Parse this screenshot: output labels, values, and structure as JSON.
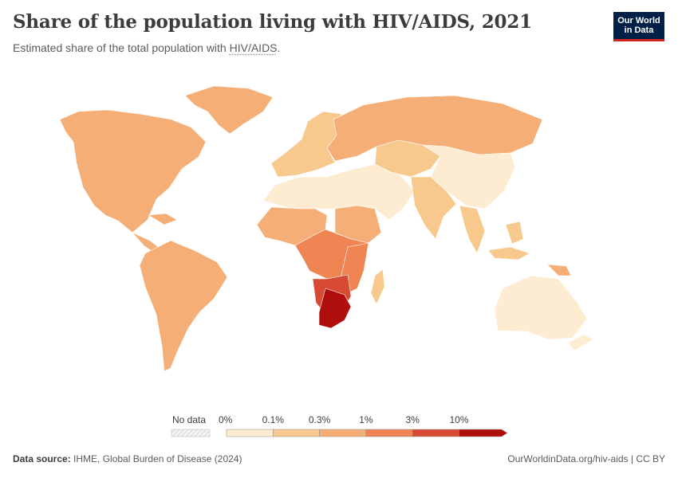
{
  "header": {
    "title": "Share of the population living with HIV/AIDS, 2021",
    "subtitle_prefix": "Estimated share of the total population with ",
    "subtitle_term": "HIV/AIDS",
    "subtitle_suffix": "."
  },
  "logo": {
    "line1": "Our World",
    "line2": "in Data",
    "bg_color": "#002147",
    "accent_color": "#ce261e"
  },
  "legend": {
    "no_data_label": "No data",
    "bins": [
      {
        "label": "0%",
        "color": "#fdecd2"
      },
      {
        "label": "0.1%",
        "color": "#f8c98c"
      },
      {
        "label": "0.3%",
        "color": "#f4ae76"
      },
      {
        "label": "1%",
        "color": "#ee8552"
      },
      {
        "label": "3%",
        "color": "#d84a33"
      },
      {
        "label": "10%",
        "color": "#b00d0d"
      }
    ]
  },
  "map_regions": [
    {
      "name": "North America (USA, Canada, Mexico)",
      "bin": 2
    },
    {
      "name": "Greenland",
      "bin": 2
    },
    {
      "name": "Central America & Caribbean",
      "bin": 2
    },
    {
      "name": "South America",
      "bin": 2
    },
    {
      "name": "Western Europe",
      "bin": 1
    },
    {
      "name": "Eastern Europe & Russia",
      "bin": 2
    },
    {
      "name": "North Africa & Middle East",
      "bin": 0
    },
    {
      "name": "Central Asia",
      "bin": 1
    },
    {
      "name": "China & East Asia",
      "bin": 0
    },
    {
      "name": "India & South Asia",
      "bin": 1
    },
    {
      "name": "Southeast Asia",
      "bin": 1
    },
    {
      "name": "Australia & New Zealand",
      "bin": 0
    },
    {
      "name": "Papua New Guinea",
      "bin": 2
    },
    {
      "name": "West Africa",
      "bin": 2
    },
    {
      "name": "Central Africa",
      "bin": 3
    },
    {
      "name": "East Africa",
      "bin": 3
    },
    {
      "name": "Southern Africa",
      "bin": 4
    },
    {
      "name": "South Africa, Botswana, Lesotho, Eswatini",
      "bin": 5
    },
    {
      "name": "Madagascar",
      "bin": 1
    }
  ],
  "footer": {
    "source_label": "Data source:",
    "source_text": " IHME, Global Burden of Disease (2024)",
    "url_text": "OurWorldinData.org/hiv-aids | CC BY"
  }
}
